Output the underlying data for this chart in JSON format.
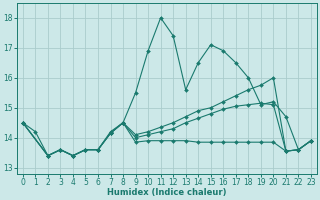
{
  "background_color": "#cce8e8",
  "grid_color": "#aacccc",
  "line_color": "#1a7a6e",
  "xlabel": "Humidex (Indice chaleur)",
  "xlim": [
    -0.5,
    23.5
  ],
  "ylim": [
    12.8,
    18.5
  ],
  "yticks": [
    13,
    14,
    15,
    16,
    17,
    18
  ],
  "xticks": [
    0,
    1,
    2,
    3,
    4,
    5,
    6,
    7,
    8,
    9,
    10,
    11,
    12,
    13,
    14,
    15,
    16,
    17,
    18,
    19,
    20,
    21,
    22,
    23
  ],
  "series1_x": [
    0,
    1,
    2,
    3,
    4,
    5,
    6,
    7,
    8,
    9,
    10,
    11,
    12,
    13,
    14,
    15,
    16,
    17,
    18,
    19,
    20,
    21,
    22,
    23
  ],
  "series1_y": [
    14.5,
    14.2,
    13.4,
    13.6,
    13.4,
    13.6,
    13.6,
    14.2,
    14.5,
    15.5,
    16.9,
    18.0,
    17.4,
    15.6,
    16.5,
    17.1,
    16.9,
    16.5,
    16.0,
    15.1,
    15.2,
    14.7,
    13.6,
    13.9
  ],
  "series2_x": [
    0,
    2,
    3,
    4,
    5,
    6,
    7,
    8,
    9,
    10,
    11,
    12,
    13,
    14,
    15,
    16,
    17,
    18,
    19,
    20,
    21,
    22,
    23
  ],
  "series2_y": [
    14.5,
    13.4,
    13.6,
    13.4,
    13.6,
    13.6,
    14.15,
    14.5,
    13.85,
    13.9,
    13.9,
    13.9,
    13.9,
    13.85,
    13.85,
    13.85,
    13.85,
    13.85,
    13.85,
    13.85,
    13.55,
    13.6,
    13.9
  ],
  "series3_x": [
    0,
    2,
    3,
    4,
    5,
    6,
    7,
    8,
    9,
    10,
    11,
    12,
    13,
    14,
    15,
    16,
    17,
    18,
    19,
    20,
    21,
    22,
    23
  ],
  "series3_y": [
    14.5,
    13.4,
    13.6,
    13.4,
    13.6,
    13.6,
    14.15,
    14.5,
    14.0,
    14.1,
    14.2,
    14.3,
    14.5,
    14.65,
    14.8,
    14.95,
    15.05,
    15.1,
    15.15,
    15.1,
    13.55,
    13.6,
    13.9
  ],
  "series4_x": [
    0,
    2,
    3,
    4,
    5,
    6,
    7,
    8,
    9,
    10,
    11,
    12,
    13,
    14,
    15,
    16,
    17,
    18,
    19,
    20,
    21,
    22,
    23
  ],
  "series4_y": [
    14.5,
    13.4,
    13.6,
    13.4,
    13.6,
    13.6,
    14.15,
    14.5,
    14.1,
    14.2,
    14.35,
    14.5,
    14.7,
    14.9,
    15.0,
    15.2,
    15.4,
    15.6,
    15.75,
    16.0,
    13.55,
    13.6,
    13.9
  ]
}
